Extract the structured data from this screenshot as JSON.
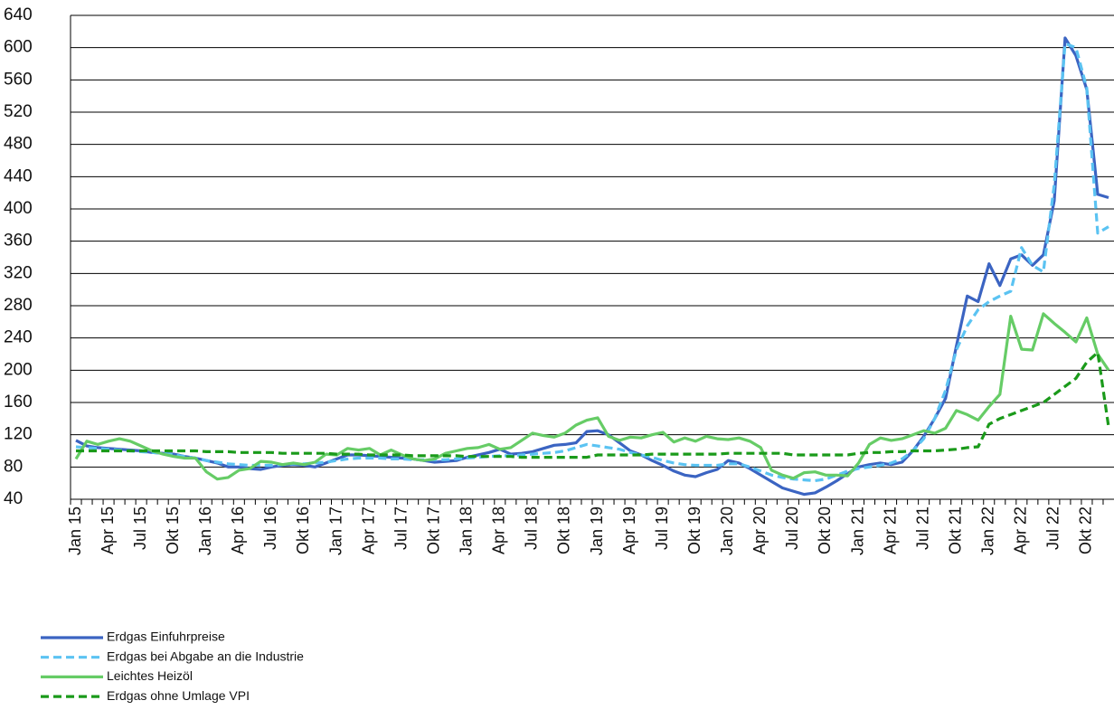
{
  "chart_data": {
    "type": "line",
    "categories": [
      "Jan 15",
      null,
      null,
      "Apr 15",
      null,
      null,
      "Jul 15",
      null,
      null,
      "Okt 15",
      null,
      null,
      "Jan 16",
      null,
      null,
      "Apr 16",
      null,
      null,
      "Jul 16",
      null,
      null,
      "Okt 16",
      null,
      null,
      "Jan 17",
      null,
      null,
      "Apr 17",
      null,
      null,
      "Jul 17",
      null,
      null,
      "Okt 17",
      null,
      null,
      "Jan 18",
      null,
      null,
      "Apr 18",
      null,
      null,
      "Jul 18",
      null,
      null,
      "Okt 18",
      null,
      null,
      "Jan 19",
      null,
      null,
      "Apr 19",
      null,
      null,
      "Jul 19",
      null,
      null,
      "Okt 19",
      null,
      null,
      "Jan 20",
      null,
      null,
      "Apr 20",
      null,
      null,
      "Jul 20",
      null,
      null,
      "Okt 20",
      null,
      null,
      "Jan 21",
      null,
      null,
      "Apr 21",
      null,
      null,
      "Jul 21",
      null,
      null,
      "Okt 21",
      null,
      null,
      "Jan 22",
      null,
      null,
      "Apr 22",
      null,
      null,
      "Jul 22",
      null,
      null,
      "Okt 22",
      null,
      null
    ],
    "series": [
      {
        "name": "Erdgas Einfuhrpreise",
        "color": "#3b64c2",
        "dashed": false,
        "values": [
          113,
          106,
          104,
          103,
          102,
          101,
          100,
          98,
          97,
          96,
          93,
          91,
          88,
          85,
          80,
          80,
          78,
          77,
          80,
          82,
          83,
          82,
          80,
          85,
          90,
          95,
          95,
          94,
          93,
          92,
          91,
          90,
          88,
          86,
          87,
          88,
          92,
          95,
          98,
          102,
          96,
          97,
          99,
          103,
          107,
          108,
          110,
          124,
          125,
          120,
          110,
          100,
          95,
          88,
          82,
          75,
          70,
          68,
          73,
          77,
          88,
          85,
          78,
          70,
          62,
          54,
          50,
          46,
          48,
          55,
          63,
          72,
          80,
          83,
          85,
          83,
          86,
          100,
          118,
          140,
          165,
          230,
          292,
          285,
          332,
          305,
          338,
          343,
          330,
          343,
          410,
          612,
          590,
          548,
          418,
          414
        ]
      },
      {
        "name": "Erdgas bei Abgabe an die Industrie",
        "color": "#5bc3f2",
        "dashed": true,
        "values": [
          105,
          104,
          103,
          102,
          101,
          100,
          99,
          98,
          97,
          95,
          93,
          91,
          88,
          86,
          84,
          83,
          82,
          82,
          82,
          83,
          84,
          84,
          85,
          86,
          88,
          90,
          91,
          91,
          91,
          90,
          90,
          89,
          89,
          89,
          89,
          90,
          91,
          92,
          93,
          94,
          94,
          95,
          96,
          97,
          98,
          100,
          104,
          108,
          106,
          104,
          102,
          98,
          95,
          92,
          88,
          85,
          83,
          82,
          82,
          82,
          84,
          84,
          80,
          75,
          70,
          67,
          65,
          64,
          63,
          65,
          70,
          75,
          78,
          80,
          82,
          85,
          90,
          100,
          115,
          140,
          175,
          225,
          255,
          275,
          285,
          292,
          298,
          352,
          330,
          322,
          430,
          605,
          600,
          550,
          370,
          378
        ]
      },
      {
        "name": "Leichtes Heizöl",
        "color": "#66cc66",
        "dashed": false,
        "values": [
          90,
          112,
          108,
          112,
          115,
          112,
          106,
          100,
          96,
          93,
          91,
          91,
          74,
          65,
          67,
          76,
          78,
          87,
          86,
          83,
          85,
          83,
          86,
          96,
          95,
          103,
          101,
          103,
          95,
          101,
          95,
          90,
          88,
          90,
          97,
          100,
          103,
          104,
          108,
          102,
          104,
          113,
          122,
          119,
          117,
          122,
          132,
          138,
          141,
          118,
          113,
          117,
          116,
          120,
          123,
          111,
          116,
          112,
          118,
          115,
          114,
          116,
          112,
          104,
          76,
          70,
          66,
          73,
          74,
          70,
          70,
          69,
          85,
          108,
          116,
          113,
          115,
          120,
          125,
          122,
          128,
          150,
          145,
          138,
          155,
          170,
          267,
          226,
          225,
          270,
          258,
          247,
          235,
          265,
          220,
          200
        ]
      },
      {
        "name": "Erdgas ohne Umlage VPI",
        "color": "#1a9a1a",
        "dashed": true,
        "values": [
          100,
          100,
          100,
          100,
          100,
          100,
          100,
          100,
          100,
          100,
          100,
          100,
          99,
          99,
          99,
          98,
          98,
          98,
          98,
          97,
          97,
          97,
          97,
          97,
          96,
          96,
          96,
          95,
          95,
          95,
          95,
          94,
          94,
          94,
          94,
          94,
          93,
          93,
          93,
          93,
          93,
          92,
          92,
          92,
          92,
          92,
          92,
          92,
          95,
          95,
          95,
          95,
          95,
          96,
          96,
          96,
          96,
          96,
          96,
          96,
          97,
          97,
          97,
          97,
          97,
          97,
          95,
          95,
          95,
          95,
          95,
          95,
          97,
          98,
          98,
          99,
          99,
          100,
          100,
          100,
          101,
          102,
          104,
          105,
          133,
          140,
          145,
          150,
          155,
          160,
          170,
          180,
          190,
          210,
          222,
          130
        ]
      }
    ],
    "ylim": [
      40,
      640
    ],
    "yticks": [
      40,
      80,
      120,
      160,
      200,
      240,
      280,
      320,
      360,
      400,
      440,
      480,
      520,
      560,
      600,
      640
    ],
    "grid": true
  }
}
